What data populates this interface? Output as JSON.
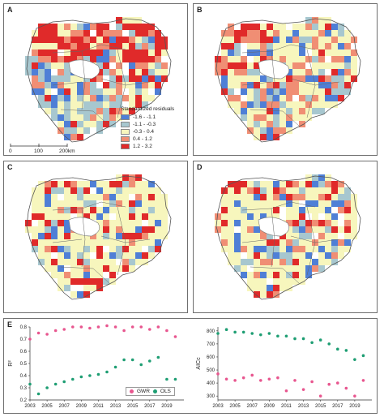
{
  "panels": [
    {
      "letter": "A",
      "seed": 11,
      "pattern": "A"
    },
    {
      "letter": "B",
      "seed": 23,
      "pattern": "B"
    },
    {
      "letter": "C",
      "seed": 37,
      "pattern": "C"
    },
    {
      "letter": "D",
      "seed": 51,
      "pattern": "D"
    }
  ],
  "legend": {
    "title": "Standardized residuals",
    "items": [
      {
        "label": "-1.6 - -1.1",
        "color": "#4f7fd6"
      },
      {
        "label": "-1.1 - -0.3",
        "color": "#a7c7cf"
      },
      {
        "label": "-0.3 - 0.4",
        "color": "#f7f6bd"
      },
      {
        "label": "0.4 - 1.2",
        "color": "#f08e74"
      },
      {
        "label": "1.2 - 3.2",
        "color": "#e02a2a"
      }
    ]
  },
  "scalebar": {
    "labels": [
      "0",
      "100",
      "200km"
    ]
  },
  "panelE_letter": "E",
  "chart_data": [
    {
      "type": "scatter",
      "ylabel": "R²",
      "xlabel": "",
      "xlim": [
        2003,
        2021
      ],
      "ylim": [
        0.2,
        0.8
      ],
      "xticks": [
        "2003",
        "2005",
        "2007",
        "2009",
        "2011",
        "2013",
        "2015",
        "2017",
        "2019"
      ],
      "yticks": [
        "0.2",
        "0.3",
        "0.4",
        "0.5",
        "0.6",
        "0.7",
        "0.8"
      ],
      "series": [
        {
          "name": "GWR",
          "color": "#e8568f",
          "x": [
            2003,
            2004,
            2005,
            2006,
            2007,
            2008,
            2009,
            2010,
            2011,
            2012,
            2013,
            2014,
            2015,
            2016,
            2017,
            2018,
            2019,
            2020
          ],
          "y": [
            0.7,
            0.75,
            0.74,
            0.77,
            0.78,
            0.8,
            0.8,
            0.79,
            0.8,
            0.81,
            0.8,
            0.77,
            0.8,
            0.8,
            0.78,
            0.8,
            0.77,
            0.72
          ]
        },
        {
          "name": "OLS",
          "color": "#1e9e73",
          "x": [
            2003,
            2004,
            2005,
            2006,
            2007,
            2008,
            2009,
            2010,
            2011,
            2012,
            2013,
            2014,
            2015,
            2016,
            2017,
            2018,
            2019,
            2020
          ],
          "y": [
            0.33,
            0.25,
            0.3,
            0.33,
            0.35,
            0.37,
            0.39,
            0.4,
            0.41,
            0.43,
            0.47,
            0.53,
            0.53,
            0.49,
            0.52,
            0.55,
            0.37,
            0.37
          ]
        }
      ],
      "legend": "bottom-right"
    },
    {
      "type": "scatter",
      "ylabel": "AICc",
      "xlabel": "",
      "xlim": [
        2003,
        2021
      ],
      "ylim": [
        270,
        830
      ],
      "xticks": [
        "2003",
        "2005",
        "2007",
        "2009",
        "2011",
        "2013",
        "2015",
        "2017",
        "2019"
      ],
      "yticks": [
        "300",
        "400",
        "500",
        "600",
        "700",
        "800"
      ],
      "series": [
        {
          "name": "GWR",
          "color": "#e8568f",
          "x": [
            2003,
            2004,
            2005,
            2006,
            2007,
            2008,
            2009,
            2010,
            2011,
            2012,
            2013,
            2014,
            2015,
            2016,
            2017,
            2018,
            2019,
            2020
          ],
          "y": [
            470,
            430,
            420,
            440,
            460,
            420,
            430,
            440,
            340,
            420,
            350,
            410,
            300,
            390,
            400,
            360,
            300,
            420
          ]
        },
        {
          "name": "OLS",
          "color": "#1e9e73",
          "x": [
            2003,
            2004,
            2005,
            2006,
            2007,
            2008,
            2009,
            2010,
            2011,
            2012,
            2013,
            2014,
            2015,
            2016,
            2017,
            2018,
            2019,
            2020
          ],
          "y": [
            780,
            810,
            790,
            790,
            780,
            770,
            780,
            760,
            760,
            740,
            740,
            710,
            730,
            700,
            660,
            650,
            580,
            610
          ]
        }
      ]
    }
  ]
}
